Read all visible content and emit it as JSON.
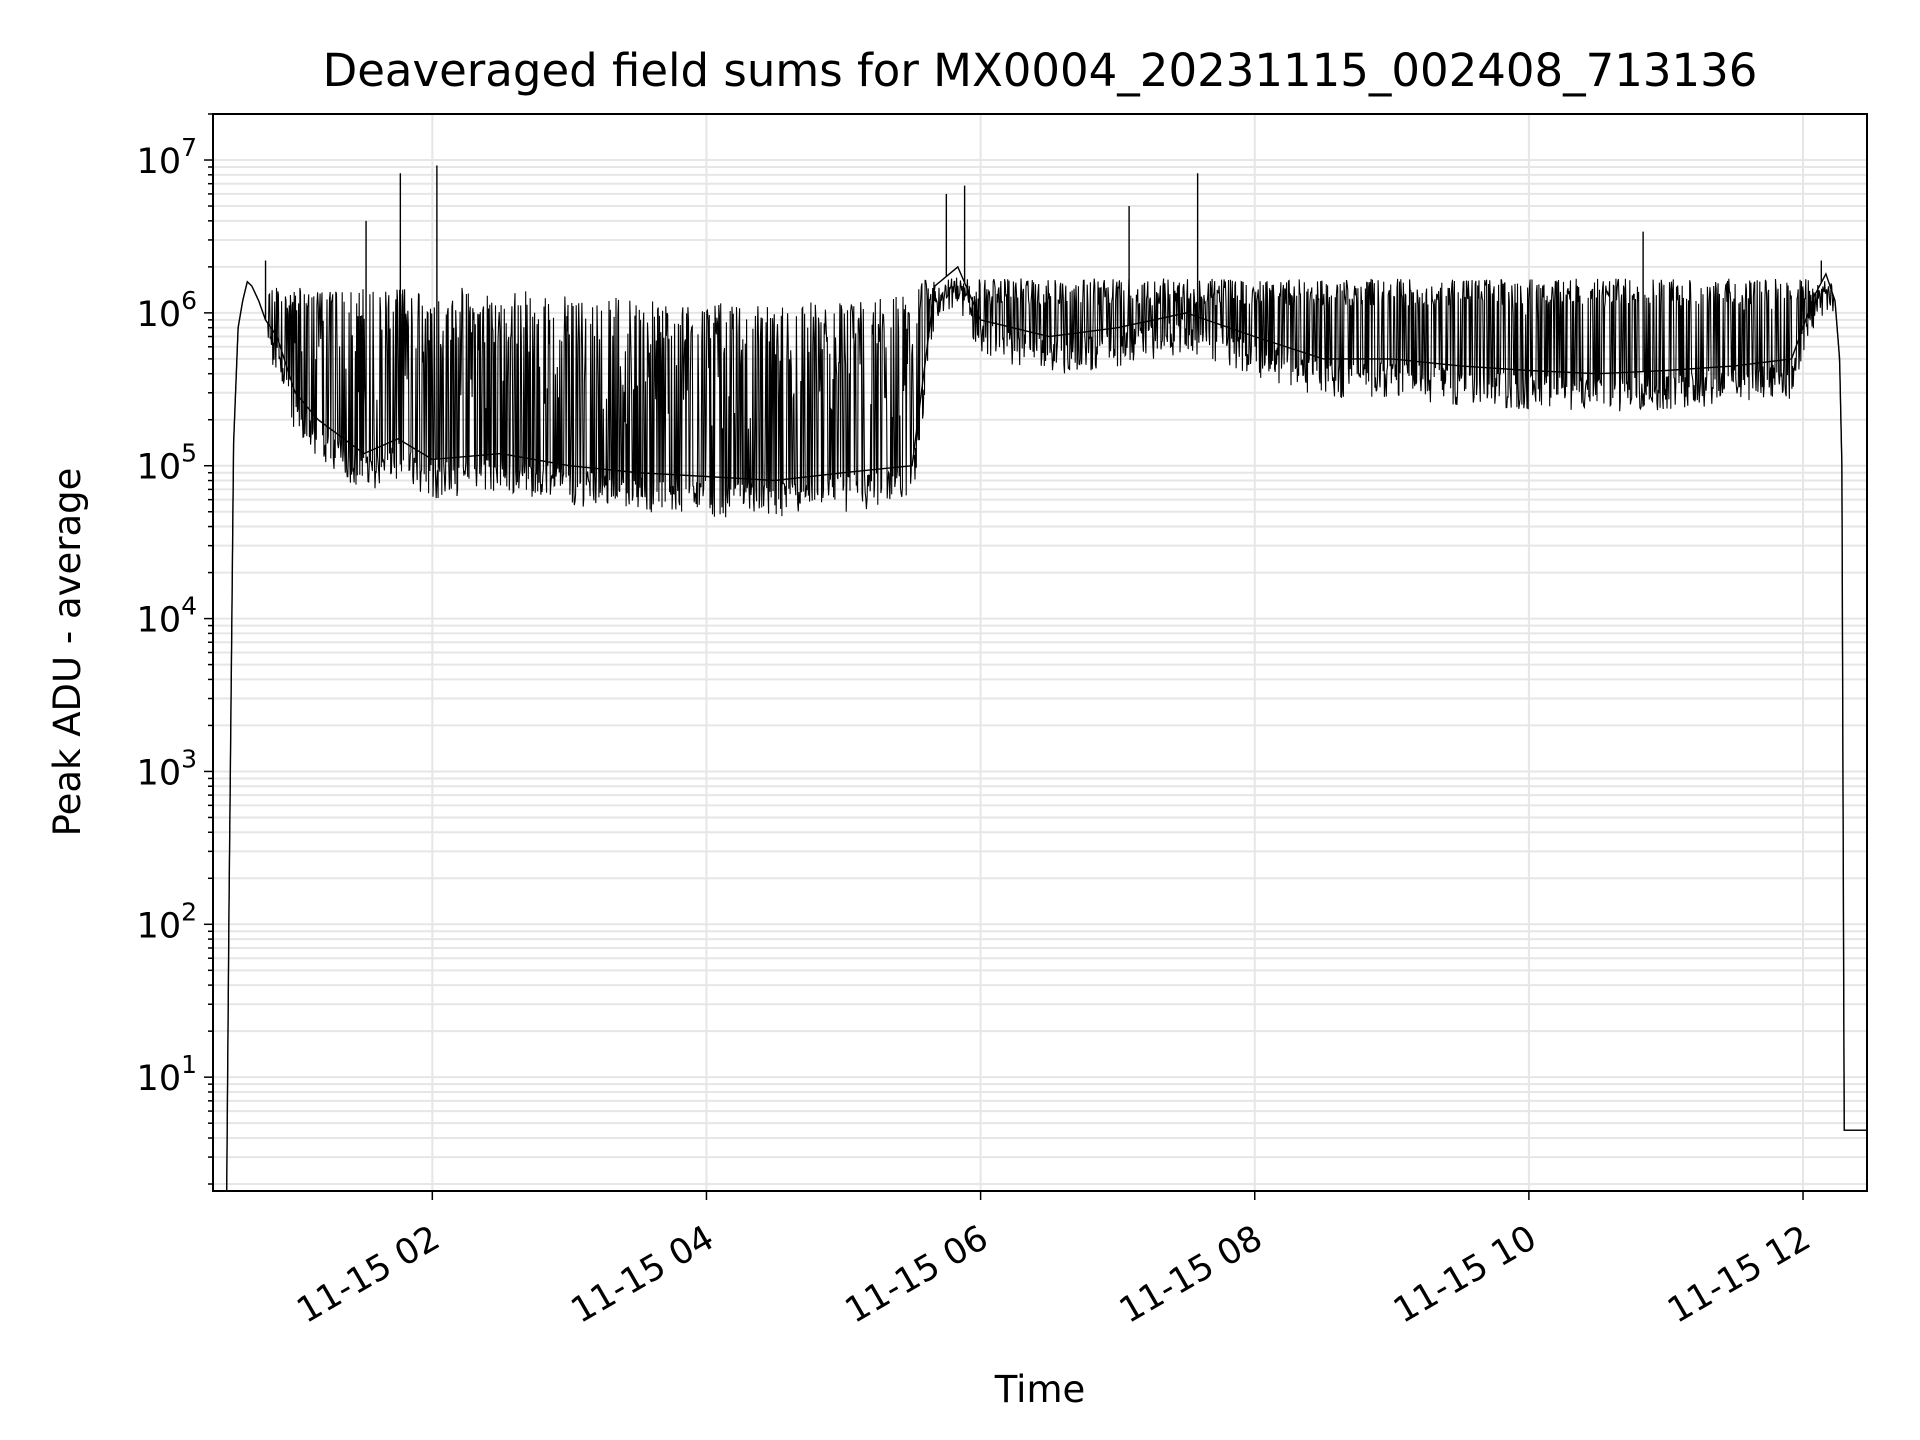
{
  "chart_data": {
    "type": "line",
    "title": "Deaveraged field sums for MX0004_20231115_002408_713136",
    "xlabel": "Time",
    "ylabel": "Peak ADU - average",
    "xlim": [
      "2023-11-15T00:24",
      "2023-11-15T12:28"
    ],
    "ylim": [
      1.8,
      20000000.0
    ],
    "yscale": "log",
    "grid": true,
    "x_ticks": [
      "11-15 02",
      "11-15 04",
      "11-15 06",
      "11-15 08",
      "11-15 10",
      "11-15 12"
    ],
    "y_ticks": [
      {
        "base": "10",
        "exp": "1",
        "value": 10
      },
      {
        "base": "10",
        "exp": "2",
        "value": 100
      },
      {
        "base": "10",
        "exp": "3",
        "value": 1000
      },
      {
        "base": "10",
        "exp": "4",
        "value": 10000
      },
      {
        "base": "10",
        "exp": "5",
        "value": 100000
      },
      {
        "base": "10",
        "exp": "6",
        "value": 1000000
      },
      {
        "base": "10",
        "exp": "7",
        "value": 10000000
      }
    ],
    "line_color": "#000000",
    "grid_color": "#e6e6e6",
    "series": [
      {
        "name": "",
        "x": [
          "2023-11-15T00:30",
          "2023-11-15T00:31",
          "2023-11-15T00:33",
          "2023-11-15T00:35",
          "2023-11-15T00:37",
          "2023-11-15T00:39",
          "2023-11-15T00:41",
          "2023-11-15T00:44",
          "2023-11-15T00:47",
          "2023-11-15T00:52",
          "2023-11-15T01:00",
          "2023-11-15T01:10",
          "2023-11-15T01:30",
          "2023-11-15T01:45",
          "2023-11-15T02:00",
          "2023-11-15T02:30",
          "2023-11-15T03:00",
          "2023-11-15T03:30",
          "2023-11-15T04:00",
          "2023-11-15T04:30",
          "2023-11-15T05:00",
          "2023-11-15T05:30",
          "2023-11-15T05:40",
          "2023-11-15T05:50",
          "2023-11-15T06:00",
          "2023-11-15T06:30",
          "2023-11-15T07:00",
          "2023-11-15T07:30",
          "2023-11-15T08:00",
          "2023-11-15T08:30",
          "2023-11-15T09:00",
          "2023-11-15T09:30",
          "2023-11-15T10:00",
          "2023-11-15T10:30",
          "2023-11-15T11:00",
          "2023-11-15T11:30",
          "2023-11-15T11:55",
          "2023-11-15T12:05",
          "2023-11-15T12:10",
          "2023-11-15T12:14",
          "2023-11-15T12:16",
          "2023-11-15T12:17",
          "2023-11-15T12:18",
          "2023-11-15T12:28"
        ],
        "y": [
          1.8,
          130,
          140000,
          800000,
          1200000,
          1600000,
          1500000,
          1200000,
          900000,
          700000,
          300000,
          200000,
          120000,
          150000,
          110000,
          120000,
          100000,
          90000,
          85000,
          80000,
          90000,
          100000,
          1500000,
          2000000,
          900000,
          700000,
          800000,
          1000000,
          700000,
          500000,
          500000,
          450000,
          420000,
          400000,
          420000,
          450000,
          500000,
          1300000,
          1800000,
          1200000,
          500000,
          100000,
          4.5,
          4.5
        ]
      }
    ],
    "spikes": [
      {
        "x": "2023-11-15T00:47",
        "y": 2200000
      },
      {
        "x": "2023-11-15T01:31",
        "y": 4000000
      },
      {
        "x": "2023-11-15T01:46",
        "y": 8200000
      },
      {
        "x": "2023-11-15T02:02",
        "y": 9200000
      },
      {
        "x": "2023-11-15T05:45",
        "y": 6000000
      },
      {
        "x": "2023-11-15T05:53",
        "y": 6800000
      },
      {
        "x": "2023-11-15T07:05",
        "y": 5000000
      },
      {
        "x": "2023-11-15T07:35",
        "y": 8200000
      },
      {
        "x": "2023-11-15T10:50",
        "y": 3400000
      },
      {
        "x": "2023-11-15T12:08",
        "y": 2200000
      }
    ]
  }
}
